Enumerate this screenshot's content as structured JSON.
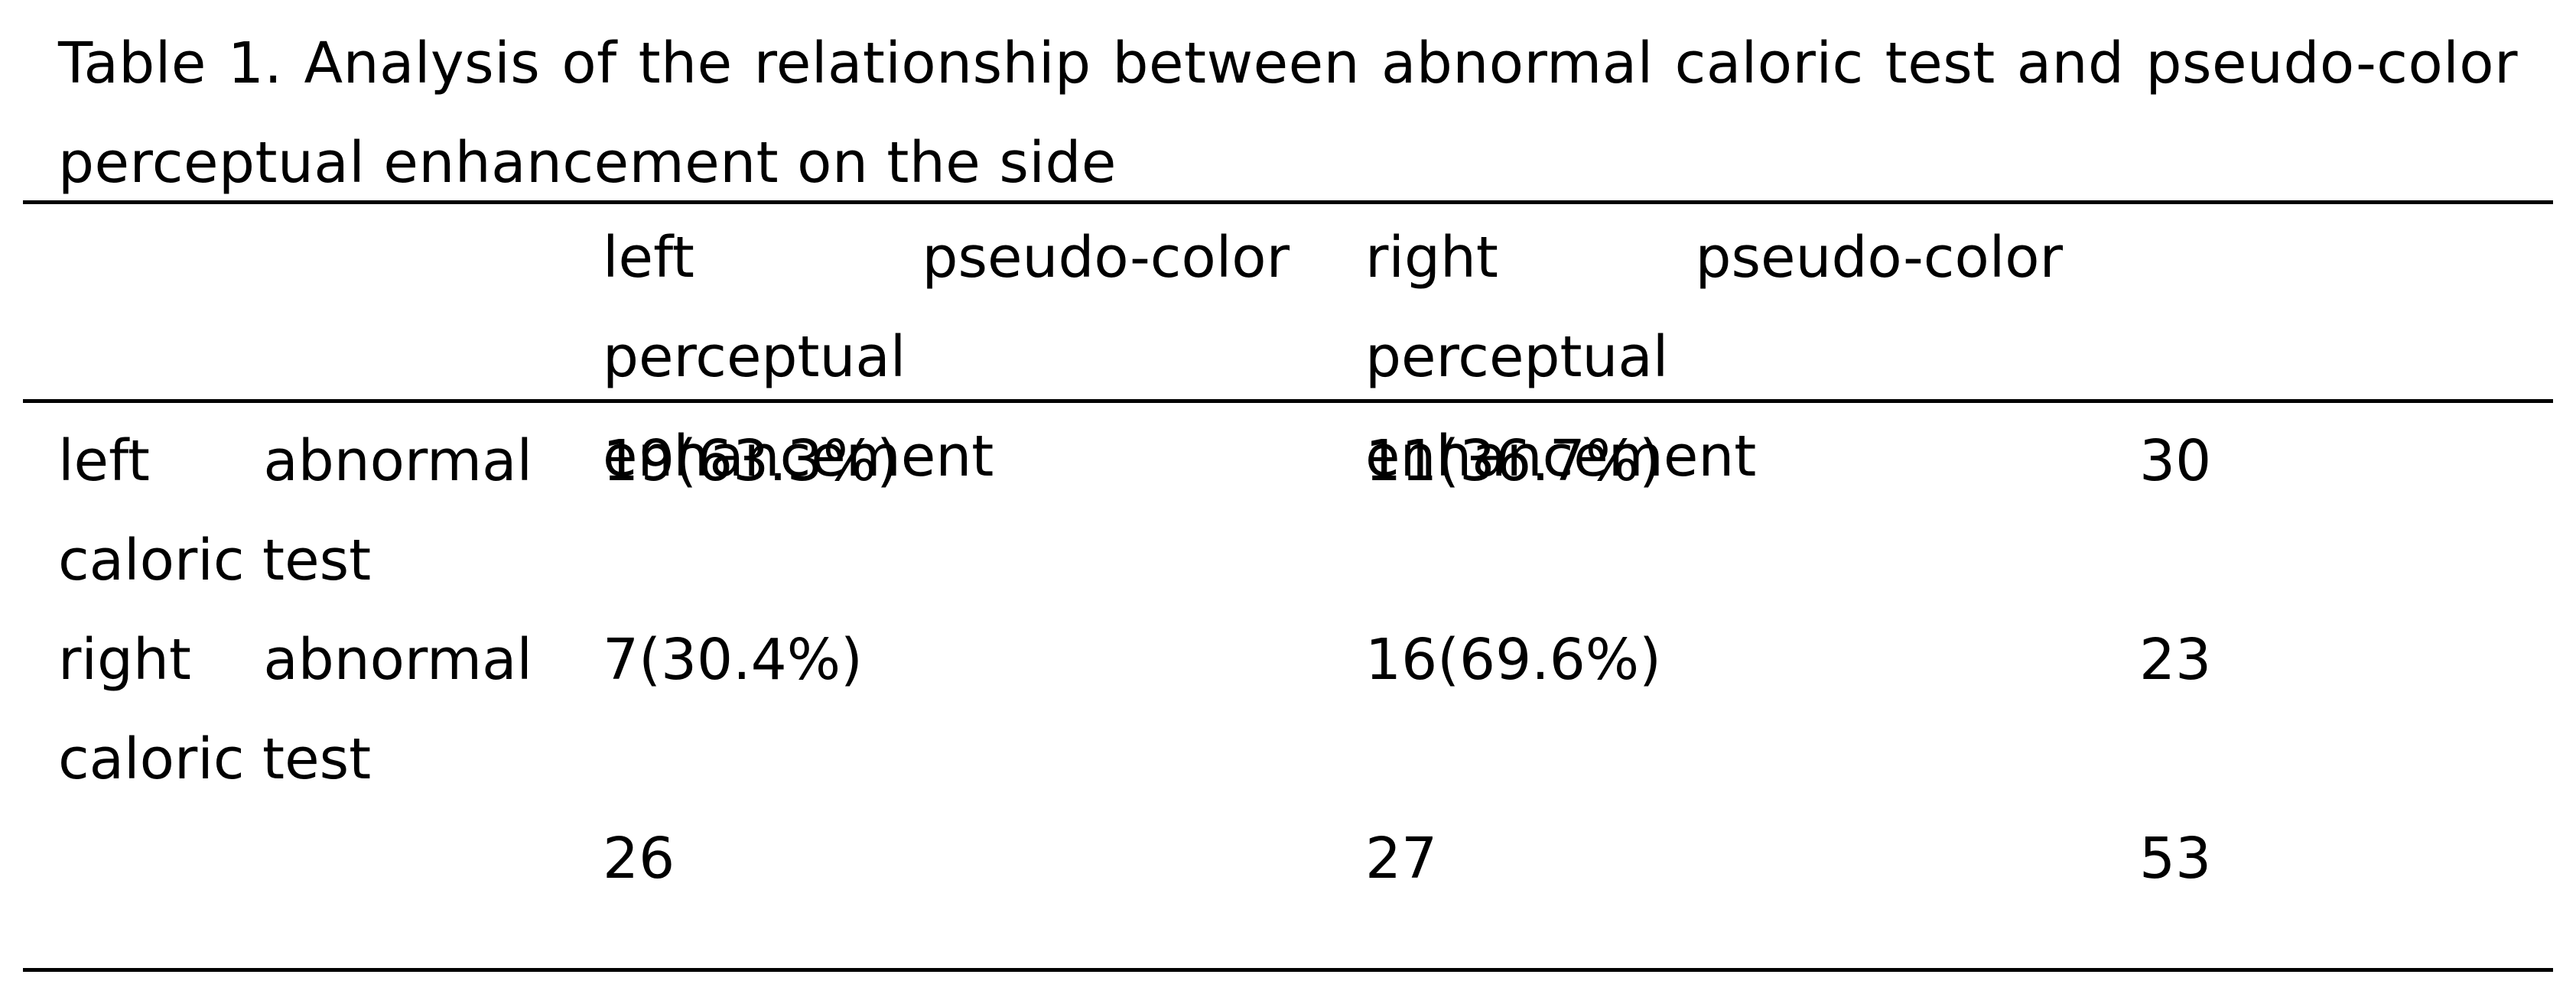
{
  "caption": "Table 1. Analysis of the relationship between abnormal caloric test and pseudo-color perceptual enhancement on the side",
  "table": {
    "headers": [
      "",
      "left pseudo-color perceptual enhancement",
      "right pseudo-color perceptual enhancement",
      ""
    ],
    "rows": [
      [
        "left abnormal caloric test",
        "19(63.3%)",
        "11(36.7%)",
        "30"
      ],
      [
        "right abnormal caloric test",
        "7(30.4%)",
        "16(69.6%)",
        "23"
      ],
      [
        "",
        "26",
        "27",
        "53"
      ]
    ]
  }
}
